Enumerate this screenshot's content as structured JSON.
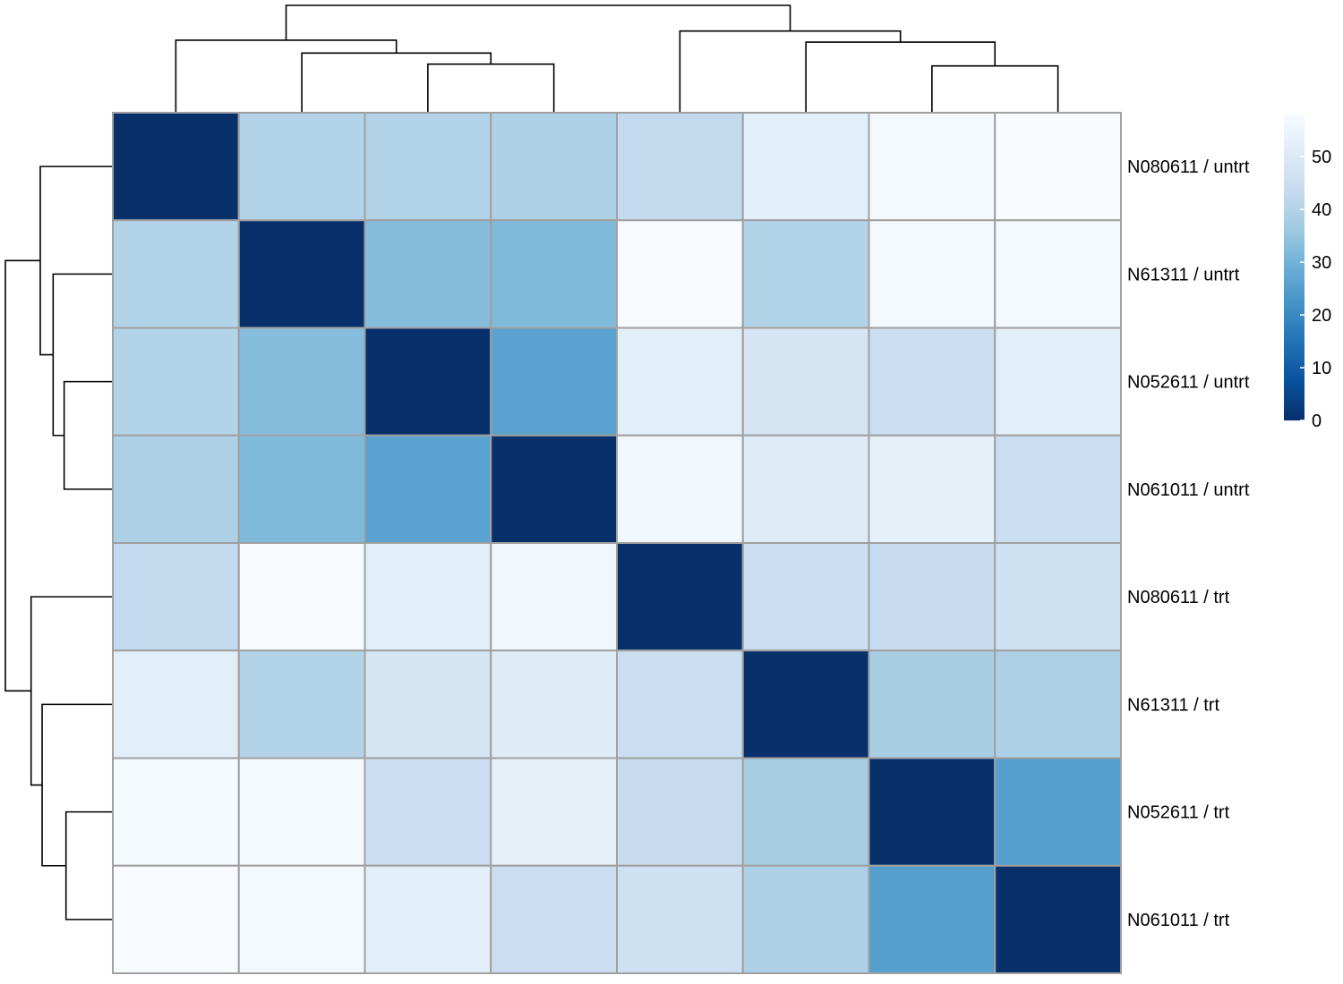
{
  "chart_data": {
    "type": "heatmap",
    "title": "",
    "xlabel": "",
    "ylabel": "",
    "rows": [
      "N080611 / untrt",
      "N61311 / untrt",
      "N052611 / untrt",
      "N061011 / untrt",
      "N080611 / trt",
      "N61311 / trt",
      "N052611 / trt",
      "N061011 / trt"
    ],
    "columns": [
      "N080611 / untrt",
      "N61311 / untrt",
      "N052611 / untrt",
      "N061011 / untrt",
      "N080611 / trt",
      "N61311 / trt",
      "N052611 / trt",
      "N061011 / trt"
    ],
    "show_column_labels": false,
    "values": [
      [
        0,
        40,
        40,
        39,
        43,
        52,
        57,
        58
      ],
      [
        40,
        0,
        33,
        32,
        58,
        40,
        57,
        57
      ],
      [
        40,
        33,
        0,
        26,
        52,
        48,
        45,
        52
      ],
      [
        39,
        32,
        26,
        0,
        56,
        51,
        53,
        45
      ],
      [
        43,
        58,
        52,
        56,
        0,
        45,
        44,
        46
      ],
      [
        52,
        40,
        48,
        51,
        45,
        0,
        38,
        39
      ],
      [
        57,
        57,
        45,
        53,
        44,
        38,
        0,
        25
      ],
      [
        58,
        57,
        52,
        45,
        46,
        39,
        25,
        0
      ]
    ],
    "colorbar": {
      "ticks": [
        "0",
        "10",
        "20",
        "30",
        "40",
        "50"
      ],
      "min": 0,
      "max": 58,
      "position": "right"
    },
    "colorscale": [
      "#08306b",
      "#08519c",
      "#2171b5",
      "#4292c6",
      "#6baed6",
      "#9ecae1",
      "#c6dbef",
      "#deebf7",
      "#f7fbff"
    ],
    "cell_border_color": "#a0a0a0",
    "dendrogram": {
      "columns": "top",
      "rows": "left",
      "leaf_order": [
        "N080611 / untrt",
        "N61311 / untrt",
        "N052611 / untrt",
        "N061011 / untrt",
        "N080611 / trt",
        "N61311 / trt",
        "N052611 / trt",
        "N061011 / trt"
      ],
      "merges": [
        {
          "a": 2,
          "b": 3,
          "height": 26
        },
        {
          "a": 6,
          "b": 7,
          "height": 25
        },
        {
          "a": 1,
          "b": "m0",
          "height": 32
        },
        {
          "a": 5,
          "b": "m1",
          "height": 38
        },
        {
          "a": 0,
          "b": "m2",
          "height": 39
        },
        {
          "a": 4,
          "b": "m3",
          "height": 44
        },
        {
          "a": "m4",
          "b": "m5",
          "height": 58
        }
      ]
    }
  }
}
